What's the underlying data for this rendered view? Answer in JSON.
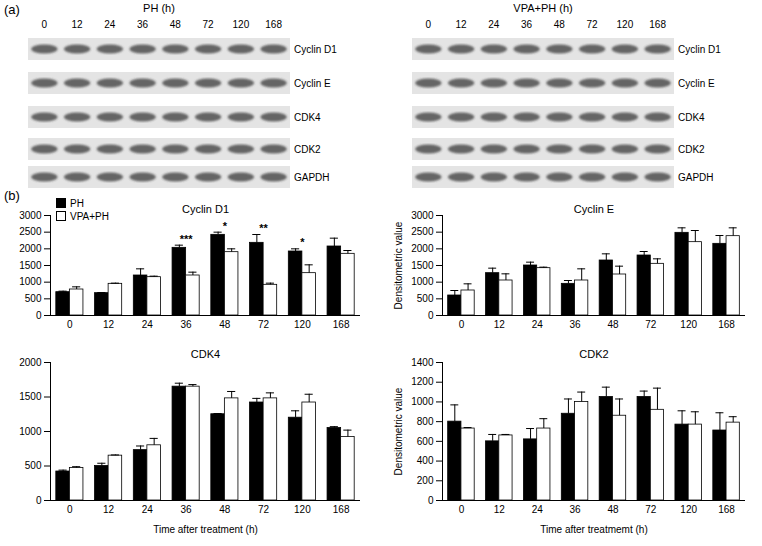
{
  "panel_a": {
    "label": "(a)",
    "blots": [
      {
        "title": "PH (h)",
        "times": [
          "0",
          "12",
          "24",
          "36",
          "48",
          "72",
          "120",
          "168"
        ],
        "proteins": [
          "Cyclin D1",
          "Cyclin E",
          "CDK4",
          "CDK2",
          "GAPDH"
        ]
      },
      {
        "title": "VPA+PH (h)",
        "times": [
          "0",
          "12",
          "24",
          "36",
          "48",
          "72",
          "120",
          "168"
        ],
        "proteins": [
          "Cyclin D1",
          "Cyclin E",
          "CDK4",
          "CDK2",
          "GAPDH"
        ]
      }
    ]
  },
  "panel_b": {
    "label": "(b)"
  },
  "chart_data": [
    {
      "type": "bar",
      "title": "Cyclin D1",
      "categories": [
        "0",
        "12",
        "24",
        "36",
        "48",
        "72",
        "120",
        "168"
      ],
      "series": [
        {
          "name": "PH",
          "color": "#000000",
          "values": [
            700,
            670,
            1200,
            2030,
            2420,
            2180,
            1920,
            2070
          ],
          "errors": [
            30,
            20,
            200,
            80,
            80,
            250,
            80,
            250
          ]
        },
        {
          "name": "VPA+PH",
          "color": "#ffffff",
          "values": [
            780,
            950,
            1150,
            1200,
            1900,
            920,
            1270,
            1850
          ],
          "errors": [
            80,
            20,
            30,
            100,
            100,
            50,
            250,
            100
          ]
        }
      ],
      "annotations": [
        {
          "category": "36",
          "text": "***"
        },
        {
          "category": "48",
          "text": "*"
        },
        {
          "category": "72",
          "text": "**"
        },
        {
          "category": "120",
          "text": "*"
        }
      ],
      "ylim": [
        0,
        3000
      ],
      "yticks": [
        0,
        500,
        1000,
        1500,
        2000,
        2500,
        3000
      ],
      "legend": "top-left"
    },
    {
      "type": "bar",
      "title": "Cyclin E",
      "ylabel": "Densitometric value",
      "categories": [
        "0",
        "12",
        "24",
        "36",
        "48",
        "72",
        "120",
        "168"
      ],
      "series": [
        {
          "name": "PH",
          "color": "#000000",
          "values": [
            600,
            1270,
            1500,
            950,
            1650,
            1800,
            2480,
            2150
          ],
          "errors": [
            150,
            150,
            100,
            100,
            200,
            120,
            150,
            250
          ]
        },
        {
          "name": "VPA+PH",
          "color": "#ffffff",
          "values": [
            750,
            1050,
            1420,
            1050,
            1230,
            1550,
            2200,
            2380
          ],
          "errors": [
            200,
            200,
            30,
            350,
            250,
            150,
            350,
            250
          ]
        }
      ],
      "ylim": [
        0,
        3000
      ],
      "yticks": [
        0,
        500,
        1000,
        1500,
        2000,
        2500,
        3000
      ]
    },
    {
      "type": "bar",
      "title": "CDK4",
      "xlabel": "Time after treatment (h)",
      "categories": [
        "0",
        "12",
        "24",
        "36",
        "48",
        "72",
        "120",
        "168"
      ],
      "series": [
        {
          "name": "PH",
          "color": "#000000",
          "values": [
            420,
            500,
            730,
            1650,
            1250,
            1420,
            1200,
            1050
          ],
          "errors": [
            20,
            40,
            60,
            50,
            10,
            60,
            100,
            20
          ]
        },
        {
          "name": "VPA+PH",
          "color": "#ffffff",
          "values": [
            470,
            650,
            800,
            1650,
            1480,
            1480,
            1420,
            920
          ],
          "errors": [
            20,
            10,
            100,
            30,
            100,
            80,
            120,
            100
          ]
        }
      ],
      "ylim": [
        0,
        2000
      ],
      "yticks": [
        0,
        500,
        1000,
        1500,
        2000
      ]
    },
    {
      "type": "bar",
      "title": "CDK2",
      "ylabel": "Densitometric value",
      "xlabel": "Time after treatmemt (h)",
      "categories": [
        "0",
        "12",
        "24",
        "36",
        "48",
        "72",
        "120",
        "168"
      ],
      "series": [
        {
          "name": "PH",
          "color": "#000000",
          "values": [
            800,
            600,
            620,
            880,
            1050,
            1050,
            770,
            710
          ],
          "errors": [
            170,
            70,
            110,
            150,
            100,
            60,
            140,
            180
          ]
        },
        {
          "name": "VPA+PH",
          "color": "#ffffff",
          "values": [
            730,
            660,
            730,
            1000,
            860,
            920,
            770,
            790
          ],
          "errors": [
            10,
            10,
            100,
            100,
            170,
            220,
            130,
            60
          ]
        }
      ],
      "ylim": [
        0,
        1400
      ],
      "yticks": [
        0,
        200,
        400,
        600,
        800,
        1000,
        1200,
        1400
      ]
    }
  ]
}
